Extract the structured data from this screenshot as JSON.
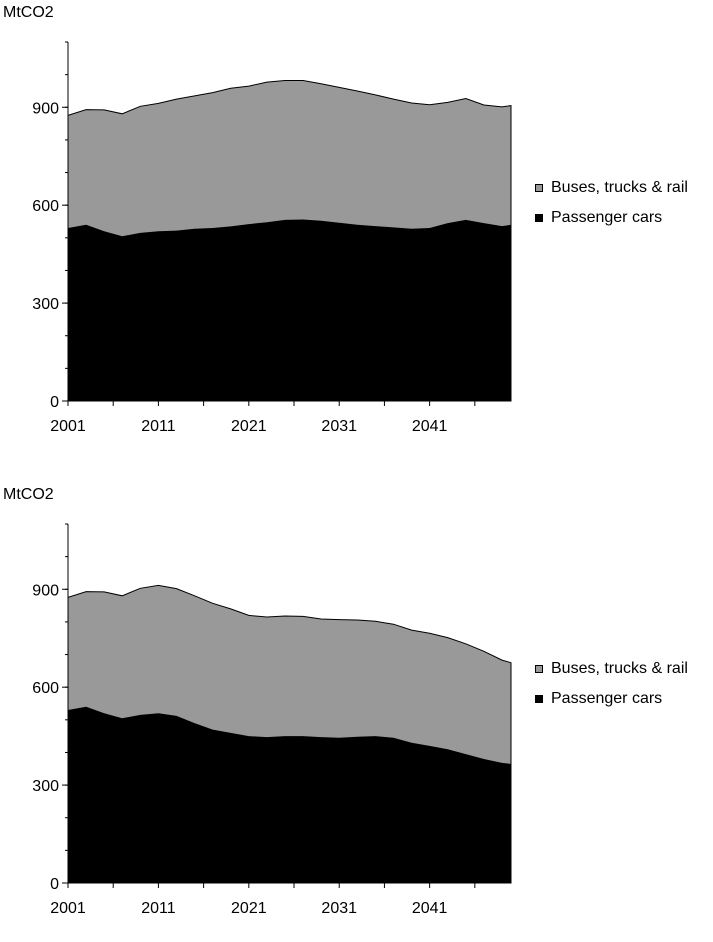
{
  "chart_data": [
    {
      "type": "area",
      "stacked": true,
      "ylabel": "MtCO2",
      "xlim": [
        2001,
        2050
      ],
      "ylim": [
        0,
        1100
      ],
      "yticks": [
        0,
        300,
        600,
        900
      ],
      "xticks": [
        2001,
        2011,
        2021,
        2031,
        2041
      ],
      "legend": [
        "Buses, trucks & rail",
        "Passenger cars"
      ],
      "legend_position": "right",
      "colors": {
        "buses": "#999999",
        "cars": "#000000"
      },
      "x": [
        2001,
        2003,
        2005,
        2007,
        2009,
        2011,
        2013,
        2015,
        2017,
        2019,
        2021,
        2023,
        2025,
        2027,
        2029,
        2031,
        2033,
        2035,
        2037,
        2039,
        2041,
        2043,
        2045,
        2047,
        2049,
        2050
      ],
      "series": [
        {
          "name": "Passenger cars",
          "values": [
            530,
            540,
            520,
            505,
            515,
            520,
            522,
            528,
            530,
            535,
            542,
            548,
            555,
            556,
            552,
            546,
            540,
            536,
            532,
            528,
            530,
            545,
            555,
            545,
            536,
            540
          ]
        },
        {
          "name": "Buses, trucks & rail",
          "values": [
            345,
            353,
            372,
            375,
            388,
            392,
            403,
            407,
            415,
            423,
            423,
            429,
            427,
            426,
            420,
            415,
            410,
            402,
            393,
            385,
            378,
            370,
            372,
            362,
            365,
            365
          ]
        }
      ]
    },
    {
      "type": "area",
      "stacked": true,
      "ylabel": "MtCO2",
      "xlim": [
        2001,
        2050
      ],
      "ylim": [
        0,
        1100
      ],
      "yticks": [
        0,
        300,
        600,
        900
      ],
      "xticks": [
        2001,
        2011,
        2021,
        2031,
        2041
      ],
      "legend": [
        "Buses, trucks & rail",
        "Passenger cars"
      ],
      "legend_position": "right",
      "colors": {
        "buses": "#999999",
        "cars": "#000000"
      },
      "x": [
        2001,
        2003,
        2005,
        2007,
        2009,
        2011,
        2013,
        2015,
        2017,
        2019,
        2021,
        2023,
        2025,
        2027,
        2029,
        2031,
        2033,
        2035,
        2037,
        2039,
        2041,
        2043,
        2045,
        2047,
        2049,
        2050
      ],
      "series": [
        {
          "name": "Passenger cars",
          "values": [
            530,
            540,
            520,
            505,
            515,
            520,
            512,
            490,
            470,
            460,
            450,
            447,
            450,
            450,
            447,
            445,
            448,
            450,
            445,
            430,
            420,
            410,
            395,
            380,
            368,
            365
          ]
        },
        {
          "name": "Buses, trucks & rail",
          "values": [
            345,
            353,
            372,
            375,
            388,
            392,
            390,
            390,
            387,
            380,
            370,
            368,
            368,
            367,
            362,
            362,
            358,
            352,
            348,
            345,
            345,
            342,
            338,
            330,
            315,
            310
          ]
        }
      ]
    }
  ]
}
